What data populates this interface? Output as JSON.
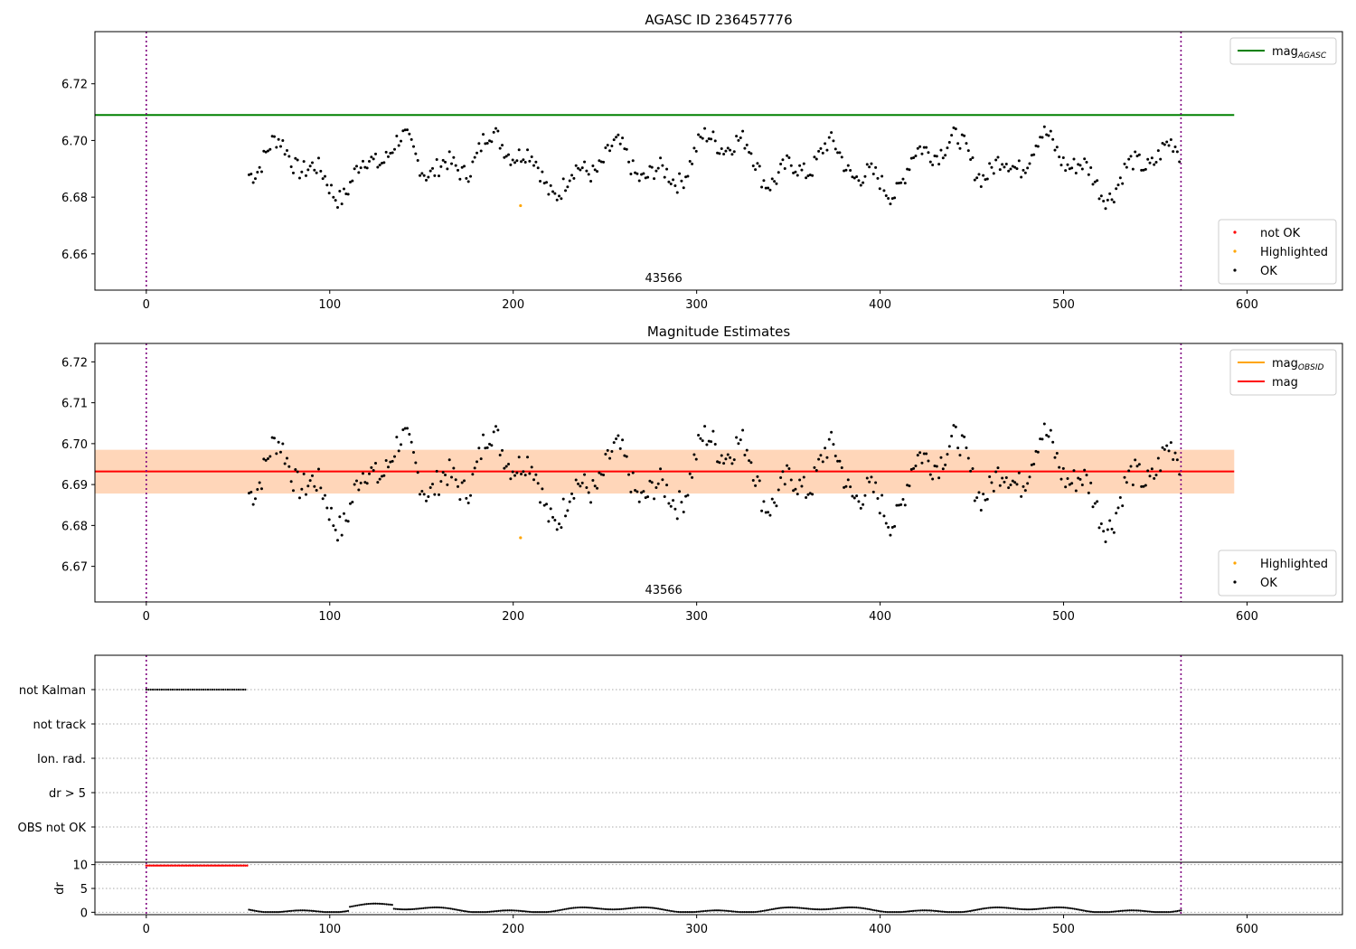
{
  "chart_data": [
    {
      "type": "scatter",
      "title": "AGASC ID 236457776",
      "xlim": [
        -28,
        652
      ],
      "ylim": [
        6.6472,
        6.7384
      ],
      "yticks": [
        6.66,
        6.68,
        6.7,
        6.72
      ],
      "xticks": [
        0,
        100,
        200,
        300,
        400,
        500,
        600
      ],
      "vlines": [
        0,
        564
      ],
      "hline": {
        "name": "mag_AGASC",
        "value": 6.709,
        "x": [
          -28,
          593
        ],
        "color": "#008000"
      },
      "annotation": {
        "text": "43566",
        "x": 282
      },
      "highlighted_points": [
        {
          "x": 204,
          "y": 6.677
        }
      ],
      "legends": [
        {
          "position": "upper right",
          "items": [
            {
              "label": "mag",
              "sub": "AGASC",
              "kind": "line",
              "color": "#008000"
            }
          ]
        },
        {
          "position": "lower right",
          "items": [
            {
              "label": "not OK",
              "kind": "dot",
              "color": "#ff0000"
            },
            {
              "label": "Highlighted",
              "kind": "dot",
              "color": "#ffa500"
            },
            {
              "label": "OK",
              "kind": "dot",
              "color": "#000000"
            }
          ]
        }
      ]
    },
    {
      "type": "scatter",
      "title": "Magnitude Estimates",
      "xlim": [
        -28,
        652
      ],
      "ylim": [
        6.6613,
        6.7245
      ],
      "yticks": [
        6.67,
        6.68,
        6.69,
        6.7,
        6.71,
        6.72
      ],
      "xticks": [
        0,
        100,
        200,
        300,
        400,
        500,
        600
      ],
      "vlines": [
        0,
        564
      ],
      "hline": {
        "name": "mag",
        "value": 6.6932,
        "x": [
          -28,
          593
        ],
        "color": "#ff0000"
      },
      "bands": [
        {
          "x": [
            -28,
            593
          ],
          "y": [
            6.6878,
            6.6985
          ],
          "color": "#ffc0cb",
          "opacity": 0.45
        },
        {
          "x": [
            -28,
            593
          ],
          "y": [
            6.6878,
            6.6985
          ],
          "color": "#ffa500",
          "opacity": 0.2
        }
      ],
      "annotation": {
        "text": "43566",
        "x": 282
      },
      "highlighted_points": [
        {
          "x": 204,
          "y": 6.677
        }
      ],
      "legends": [
        {
          "position": "upper right",
          "items": [
            {
              "label": "mag",
              "sub": "OBSID",
              "kind": "line",
              "color": "#ffa500"
            },
            {
              "label": "mag",
              "kind": "line",
              "color": "#ff0000"
            }
          ]
        },
        {
          "position": "lower right",
          "items": [
            {
              "label": "Highlighted",
              "kind": "dot",
              "color": "#ffa500"
            },
            {
              "label": "OK",
              "kind": "dot",
              "color": "#000000"
            }
          ]
        }
      ]
    },
    {
      "type": "scatter",
      "title": "",
      "xlim": [
        -28,
        652
      ],
      "xticks": [
        0,
        100,
        200,
        300,
        400,
        500,
        600
      ],
      "vlines": [
        0,
        564
      ],
      "categories": [
        "not Kalman",
        "not track",
        "Ion. rad.",
        "dr > 5",
        "OBS not OK"
      ],
      "flags": [
        {
          "category": "not Kalman",
          "x_range": [
            0,
            55
          ]
        }
      ]
    },
    {
      "type": "scatter",
      "title": "",
      "ylabel": "dr",
      "xlim": [
        -28,
        652
      ],
      "ylim": [
        -0.5,
        10.5
      ],
      "yticks": [
        0,
        5,
        10
      ],
      "xticks": [
        0,
        100,
        200,
        300,
        400,
        500,
        600
      ],
      "vlines": [
        0,
        564
      ],
      "flagged_segment": {
        "x_range": [
          0,
          55
        ],
        "y": 9.8,
        "color": "#ff0000"
      },
      "series_range": [
        56,
        564
      ]
    }
  ],
  "colors": {
    "vline": "#800080",
    "ok": "#000000",
    "highlight": "#ffa500",
    "notok": "#ff0000"
  }
}
